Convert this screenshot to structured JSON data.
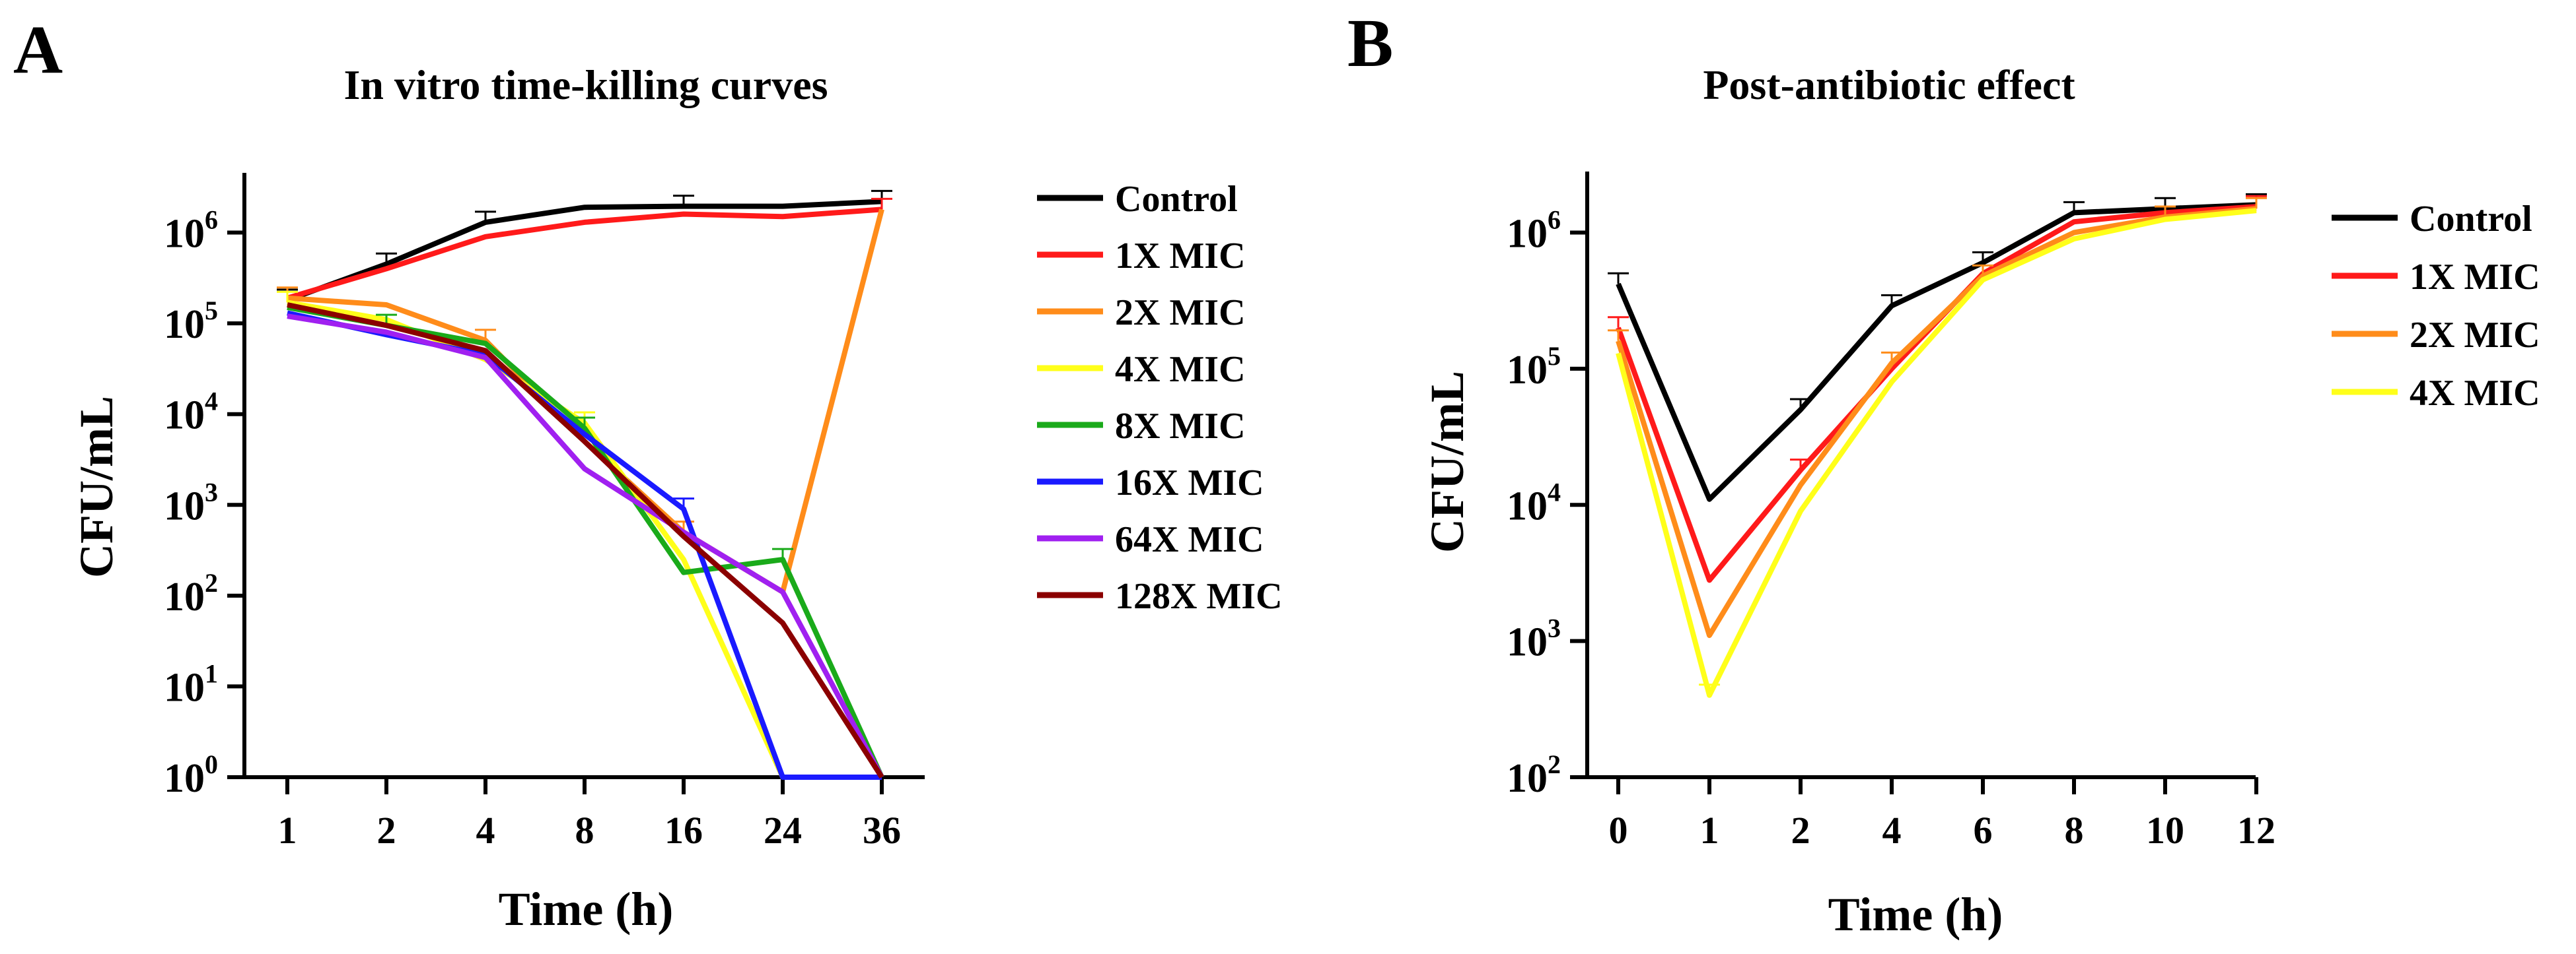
{
  "chart_data": [
    {
      "panel_letter": "A",
      "type": "line",
      "title": "In vitro time-killing curves",
      "xlabel": "Time (h)",
      "ylabel": "CFU/mL",
      "x_ticks": [
        "1",
        "2",
        "4",
        "8",
        "16",
        "24",
        "36"
      ],
      "y_scale": "log",
      "y_ticks": [
        {
          "base": "10",
          "exp": "0"
        },
        {
          "base": "10",
          "exp": "1"
        },
        {
          "base": "10",
          "exp": "2"
        },
        {
          "base": "10",
          "exp": "3"
        },
        {
          "base": "10",
          "exp": "4"
        },
        {
          "base": "10",
          "exp": "5"
        },
        {
          "base": "10",
          "exp": "6"
        }
      ],
      "ylim_log10": [
        0,
        6.6
      ],
      "legend_position": "right",
      "series": [
        {
          "name": "Control",
          "color": "#000000",
          "values": [
            180000,
            450000,
            1300000,
            1900000,
            1950000,
            1950000,
            2200000
          ],
          "errors": [
            true,
            true,
            true,
            false,
            true,
            false,
            true
          ]
        },
        {
          "name": "1X MIC",
          "color": "#ff1a1a",
          "values": [
            190000,
            400000,
            900000,
            1300000,
            1600000,
            1500000,
            1800000
          ],
          "errors": [
            false,
            false,
            false,
            false,
            false,
            false,
            true
          ]
        },
        {
          "name": "2X MIC",
          "color": "#ff8c1a",
          "values": [
            190000,
            160000,
            65000,
            5000,
            500,
            110,
            1800000
          ],
          "errors": [
            true,
            false,
            true,
            false,
            true,
            false,
            false
          ]
        },
        {
          "name": "4X MIC",
          "color": "#ffff1a",
          "values": [
            170000,
            110000,
            40000,
            8000,
            250,
            1,
            1
          ],
          "errors": [
            true,
            false,
            false,
            true,
            false,
            false,
            false
          ]
        },
        {
          "name": "8X MIC",
          "color": "#1aaa1a",
          "values": [
            150000,
            95000,
            60000,
            7000,
            180,
            250,
            1
          ],
          "errors": [
            false,
            true,
            false,
            true,
            false,
            true,
            false
          ]
        },
        {
          "name": "16X MIC",
          "color": "#1a1aff",
          "values": [
            130000,
            75000,
            45000,
            6000,
            900,
            1,
            1
          ],
          "errors": [
            false,
            false,
            false,
            false,
            true,
            false,
            false
          ]
        },
        {
          "name": "64X MIC",
          "color": "#a020f0",
          "values": [
            120000,
            80000,
            42000,
            2500,
            500,
            110,
            1
          ],
          "errors": [
            false,
            false,
            false,
            false,
            false,
            false,
            false
          ]
        },
        {
          "name": "128X MIC",
          "color": "#8b0000",
          "values": [
            160000,
            95000,
            50000,
            5000,
            450,
            50,
            1
          ],
          "errors": [
            false,
            false,
            false,
            false,
            false,
            false,
            false
          ]
        }
      ]
    },
    {
      "panel_letter": "B",
      "type": "line",
      "title": "Post-antibiotic effect",
      "xlabel": "Time (h)",
      "ylabel": "CFU/mL",
      "x_ticks": [
        "0",
        "1",
        "2",
        "4",
        "6",
        "8",
        "10",
        "12"
      ],
      "y_scale": "log",
      "y_ticks": [
        {
          "base": "10",
          "exp": "2"
        },
        {
          "base": "10",
          "exp": "3"
        },
        {
          "base": "10",
          "exp": "4"
        },
        {
          "base": "10",
          "exp": "5"
        },
        {
          "base": "10",
          "exp": "6"
        }
      ],
      "ylim_log10": [
        2,
        6.4
      ],
      "legend_position": "right",
      "series": [
        {
          "name": "Control",
          "color": "#000000",
          "values": [
            420000,
            11000,
            50000,
            290000,
            600000,
            1400000,
            1500000,
            1600000
          ],
          "errors": [
            true,
            false,
            true,
            true,
            true,
            true,
            true,
            true
          ]
        },
        {
          "name": "1X MIC",
          "color": "#ff1a1a",
          "values": [
            200000,
            2800,
            18000,
            100000,
            500000,
            1200000,
            1400000,
            1550000
          ],
          "errors": [
            true,
            false,
            true,
            false,
            false,
            false,
            false,
            true
          ]
        },
        {
          "name": "2X MIC",
          "color": "#ff8c1a",
          "values": [
            160000,
            1100,
            14000,
            110000,
            480000,
            1000000,
            1300000,
            1500000
          ],
          "errors": [
            true,
            false,
            false,
            true,
            true,
            false,
            true,
            true
          ]
        },
        {
          "name": "4X MIC",
          "color": "#ffff1a",
          "values": [
            130000,
            400,
            9000,
            80000,
            450000,
            900000,
            1250000,
            1450000
          ],
          "errors": [
            false,
            true,
            false,
            false,
            false,
            false,
            false,
            false
          ]
        }
      ]
    }
  ]
}
